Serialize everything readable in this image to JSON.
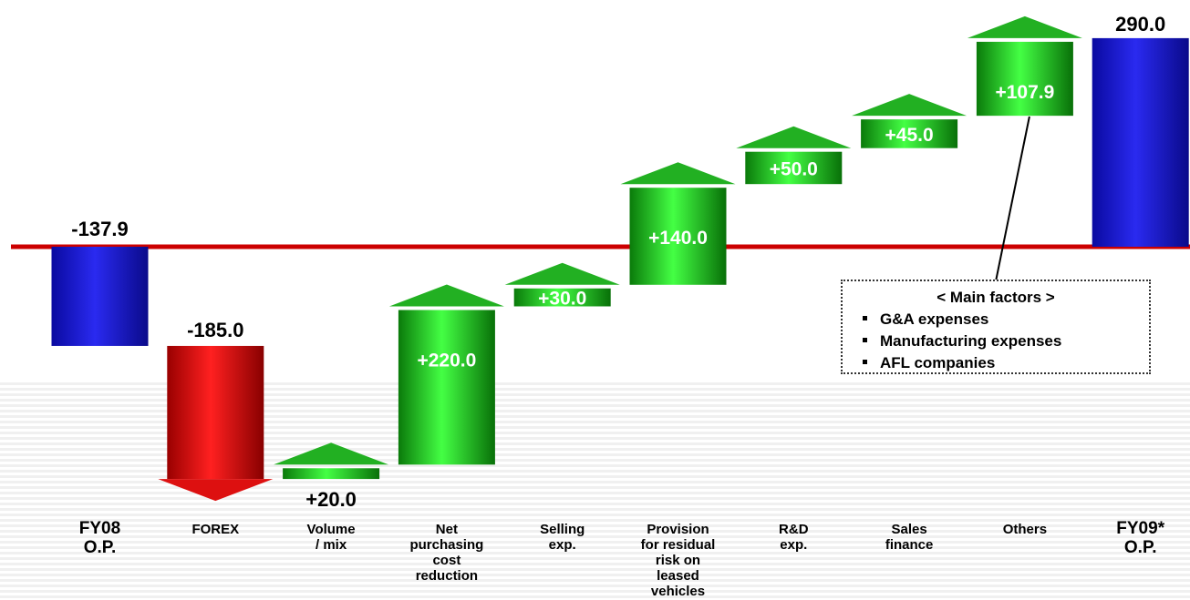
{
  "chart_data": {
    "type": "bar",
    "subtype": "waterfall",
    "title": "",
    "baseline": 0,
    "categories": [
      {
        "id": "fy08",
        "lines": [
          "FY08",
          "O.P."
        ],
        "big": true
      },
      {
        "id": "forex",
        "lines": [
          "FOREX"
        ]
      },
      {
        "id": "volume",
        "lines": [
          "Volume",
          "/ mix"
        ]
      },
      {
        "id": "purchasing",
        "lines": [
          "Net",
          "purchasing",
          "cost",
          "reduction"
        ]
      },
      {
        "id": "selling",
        "lines": [
          "Selling",
          "exp."
        ]
      },
      {
        "id": "residual",
        "lines": [
          "Provision",
          "for residual",
          "risk on",
          "leased",
          "vehicles"
        ]
      },
      {
        "id": "rnd",
        "lines": [
          "R&D",
          "exp."
        ]
      },
      {
        "id": "sales-finance",
        "lines": [
          "Sales",
          "finance"
        ]
      },
      {
        "id": "others",
        "lines": [
          "Others"
        ]
      },
      {
        "id": "fy09",
        "lines": [
          "FY09*",
          "O.P."
        ],
        "big": true
      }
    ],
    "values": [
      -137.9,
      -185.0,
      20.0,
      220.0,
      30.0,
      140.0,
      50.0,
      45.0,
      107.9,
      290.0
    ],
    "kinds": [
      "total",
      "decrease",
      "increase",
      "increase",
      "increase",
      "increase",
      "increase",
      "increase",
      "increase",
      "total"
    ],
    "labels": [
      "-137.9",
      "-185.0",
      "+20.0",
      "+220.0",
      "+30.0",
      "+140.0",
      "+50.0",
      "+45.0",
      "+107.9",
      "290.0"
    ],
    "colors": {
      "total": "#1a1acc",
      "decrease": "#cc0000",
      "increase": "#22bb22",
      "baseline": "#cc0000"
    }
  },
  "main_factors": {
    "title": "< Main factors >",
    "items": [
      "G&A expenses",
      "Manufacturing expenses",
      "AFL companies"
    ]
  }
}
